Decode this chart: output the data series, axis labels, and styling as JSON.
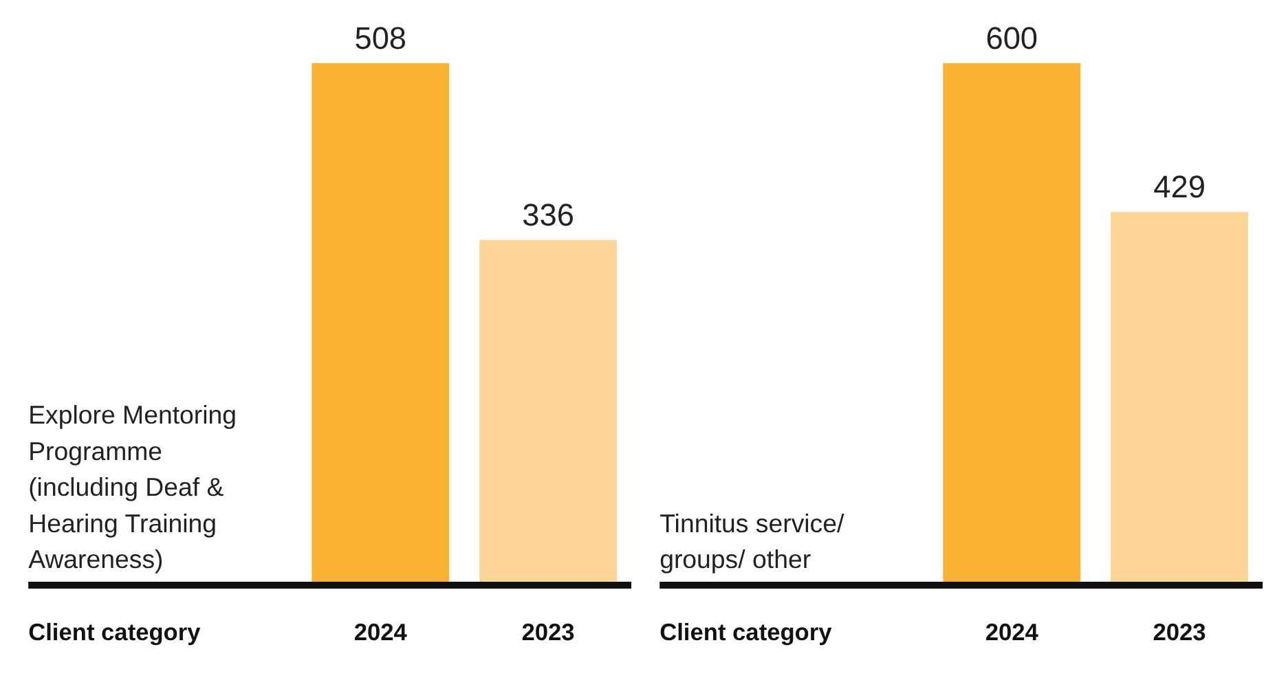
{
  "chart_data": [
    {
      "type": "bar",
      "xlabel": "Client category",
      "categories": [
        "2024",
        "2023"
      ],
      "values": [
        508,
        336
      ],
      "colors": [
        "#f9b233",
        "#fdd597"
      ],
      "data_labels": true,
      "annotations": [
        "Explore Mentoring Programme (including Deaf & Hearing Training Awareness)"
      ]
    },
    {
      "type": "bar",
      "xlabel": "Client category",
      "categories": [
        "2024",
        "2023"
      ],
      "values": [
        600,
        429
      ],
      "colors": [
        "#f9b233",
        "#fdd597"
      ],
      "data_labels": true,
      "annotations": [
        "Tinnitus service/ groups/ other"
      ]
    }
  ]
}
